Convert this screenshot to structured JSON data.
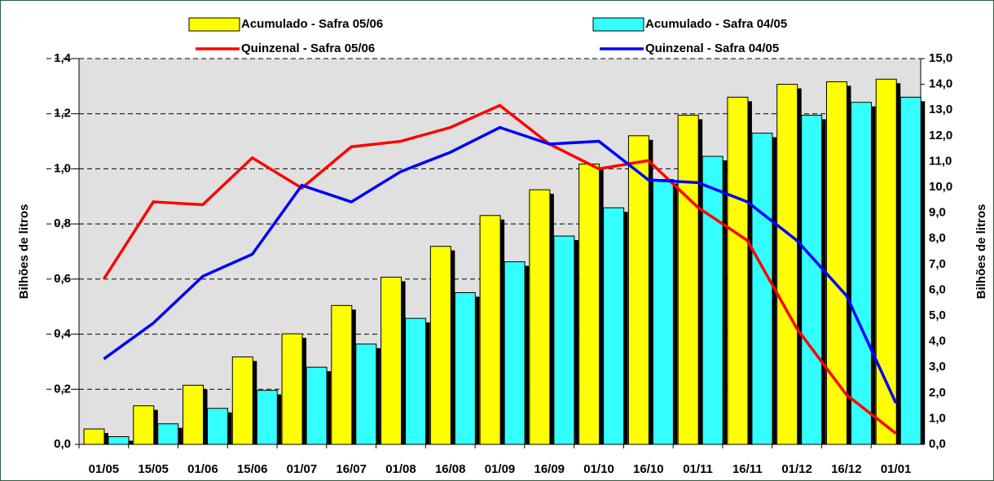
{
  "chart_data": {
    "type": "bar",
    "y_label": "Bilhões de litros",
    "y2_label": "Bilhões de litros",
    "categories": [
      "01/05",
      "15/05",
      "01/06",
      "15/06",
      "01/07",
      "16/07",
      "01/08",
      "16/08",
      "01/09",
      "16/09",
      "01/10",
      "16/10",
      "01/11",
      "16/11",
      "01/12",
      "16/12",
      "01/01"
    ],
    "series": [
      {
        "name": "Acumulado - Safra 05/06",
        "type": "bar",
        "axis": "y2",
        "color": "#ffff00",
        "values": [
          0.6,
          1.5,
          2.3,
          3.4,
          4.3,
          5.4,
          6.5,
          7.7,
          8.9,
          9.9,
          10.9,
          12.0,
          12.8,
          13.5,
          14.0,
          14.1,
          14.2
        ]
      },
      {
        "name": "Acumulado - Safra 04/05",
        "type": "bar",
        "axis": "y2",
        "color": "#33ffff",
        "values": [
          0.3,
          0.8,
          1.4,
          2.1,
          3.0,
          3.9,
          4.9,
          5.9,
          7.1,
          8.1,
          9.2,
          10.3,
          11.2,
          12.1,
          12.8,
          13.3,
          13.5
        ]
      },
      {
        "name": "Quinzenal - Safra 05/06",
        "type": "line",
        "color": "#ff0000",
        "values": [
          0.6,
          0.88,
          0.87,
          1.04,
          0.93,
          1.08,
          1.1,
          1.15,
          1.23,
          1.09,
          1.0,
          1.03,
          0.86,
          0.74,
          0.42,
          0.18,
          0.04
        ]
      },
      {
        "name": "Quinzenal - Safra 04/05",
        "type": "line",
        "color": "#0000ff",
        "values": [
          0.31,
          0.44,
          0.61,
          0.69,
          0.94,
          0.88,
          0.99,
          1.06,
          1.15,
          1.09,
          1.1,
          0.96,
          0.95,
          0.88,
          0.74,
          0.54,
          0.15
        ]
      }
    ],
    "ylim": [
      0,
      1.4
    ],
    "yticks": [
      {
        "value": 0,
        "label": "0,0"
      },
      {
        "value": 0.2,
        "label": "0,2"
      },
      {
        "value": 0.4,
        "label": "0,4"
      },
      {
        "value": 0.6,
        "label": "0,6"
      },
      {
        "value": 0.8,
        "label": "0,8"
      },
      {
        "value": 1.0,
        "label": "1,0"
      },
      {
        "value": 1.2,
        "label": "1,2"
      },
      {
        "value": 1.4,
        "label": "1,4"
      }
    ],
    "y2lim": [
      0,
      15
    ],
    "y2ticks": [
      {
        "value": 0,
        "label": "0,0"
      },
      {
        "value": 1,
        "label": "1,0"
      },
      {
        "value": 2,
        "label": "2,0"
      },
      {
        "value": 3,
        "label": "3,0"
      },
      {
        "value": 4,
        "label": "4,0"
      },
      {
        "value": 5,
        "label": "5,0"
      },
      {
        "value": 6,
        "label": "6,0"
      },
      {
        "value": 7,
        "label": "7,0"
      },
      {
        "value": 8,
        "label": "8,0"
      },
      {
        "value": 9,
        "label": "9,0"
      },
      {
        "value": 10,
        "label": "10,0"
      },
      {
        "value": 11,
        "label": "11,0"
      },
      {
        "value": 12,
        "label": "12,0"
      },
      {
        "value": 13,
        "label": "13,0"
      },
      {
        "value": 14,
        "label": "14,0"
      },
      {
        "value": 15,
        "label": "15,0"
      }
    ],
    "grid": true
  }
}
